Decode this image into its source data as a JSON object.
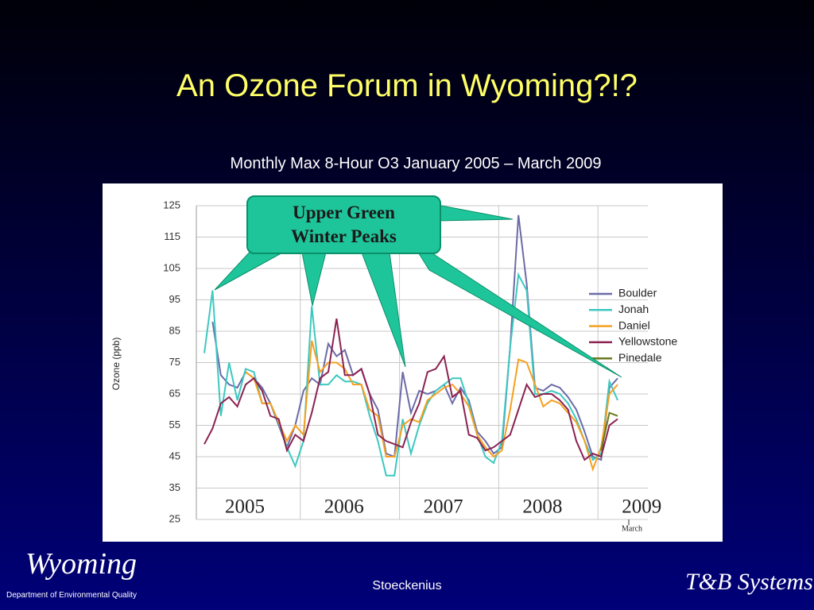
{
  "chart_data": {
    "type": "line",
    "title": "An Ozone Forum in Wyoming?!?",
    "subtitle": "Monthly Max 8-Hour O3 January 2005 – March 2009",
    "y_label": "Ozone (ppb)",
    "annotation": "Upper Green Winter Peaks",
    "categories": [
      null,
      null,
      null,
      null,
      null,
      null,
      null,
      null,
      null,
      null,
      null,
      null,
      null,
      null,
      null,
      null,
      null,
      null,
      null,
      null,
      null,
      null,
      null,
      null,
      null,
      null,
      null,
      null,
      null,
      null,
      null,
      null,
      null,
      null,
      null,
      null,
      null,
      null,
      null,
      null,
      null,
      null,
      null,
      null,
      null,
      null,
      null,
      null,
      null,
      null,
      null
    ],
    "x_groups": [
      "2005",
      "2006",
      "2007",
      "2008",
      "2009"
    ],
    "x_note": "March",
    "ylim": [
      25,
      125
    ],
    "yticks": [
      25,
      35,
      45,
      55,
      65,
      75,
      85,
      95,
      105,
      115,
      125
    ],
    "grid": true,
    "legend": "right",
    "series": [
      {
        "name": "Boulder",
        "color": "#6b6ba8",
        "values": [
          null,
          88,
          71,
          68,
          67,
          72,
          70,
          67,
          62,
          55,
          48,
          55,
          66,
          70,
          68,
          81,
          77,
          79,
          71,
          73,
          65,
          60,
          46,
          45,
          72,
          59,
          66,
          65,
          66,
          68,
          62,
          67,
          63,
          53,
          50,
          46,
          48,
          80,
          122,
          100,
          67,
          66,
          68,
          67,
          64,
          60,
          53,
          45,
          44,
          67,
          70
        ]
      },
      {
        "name": "Jonah",
        "color": "#3cc8c0",
        "values": [
          78,
          98,
          58,
          75,
          63,
          73,
          72,
          62,
          62,
          56,
          48,
          42,
          50,
          93,
          68,
          68,
          71,
          69,
          69,
          68,
          58,
          50,
          39,
          39,
          57,
          46,
          55,
          62,
          66,
          68,
          70,
          70,
          62,
          52,
          45,
          43,
          50,
          80,
          103,
          98,
          65,
          65,
          66,
          65,
          62,
          57,
          50,
          44,
          46,
          69,
          63
        ]
      },
      {
        "name": "Daniel",
        "color": "#f5a020",
        "values": [
          null,
          null,
          null,
          null,
          null,
          72,
          70,
          62,
          62,
          56,
          50,
          55,
          52,
          82,
          72,
          75,
          75,
          73,
          68,
          68,
          60,
          58,
          45,
          45,
          55,
          57,
          56,
          63,
          65,
          67,
          68,
          65,
          61,
          52,
          48,
          45,
          47,
          60,
          76,
          75,
          68,
          61,
          63,
          62,
          59,
          56,
          50,
          41,
          48,
          65,
          68
        ]
      },
      {
        "name": "Yellowstone",
        "color": "#8b2252",
        "values": [
          49,
          54,
          62,
          64,
          61,
          68,
          70,
          66,
          58,
          57,
          47,
          52,
          50,
          59,
          70,
          72,
          89,
          71,
          71,
          73,
          65,
          52,
          50,
          49,
          48,
          56,
          62,
          72,
          73,
          77,
          64,
          66,
          52,
          51,
          47,
          48,
          50,
          52,
          60,
          68,
          64,
          65,
          65,
          63,
          60,
          50,
          44,
          46,
          45,
          55,
          57
        ]
      },
      {
        "name": "Pinedale",
        "color": "#6b7a1e",
        "values": [
          null,
          null,
          null,
          null,
          null,
          null,
          null,
          null,
          null,
          null,
          null,
          null,
          null,
          null,
          null,
          null,
          null,
          null,
          null,
          null,
          null,
          null,
          null,
          null,
          null,
          null,
          null,
          null,
          null,
          null,
          null,
          null,
          null,
          null,
          null,
          null,
          null,
          null,
          null,
          null,
          null,
          null,
          null,
          null,
          null,
          null,
          null,
          null,
          47,
          59,
          58
        ]
      }
    ]
  },
  "footer": {
    "presenter": "Stoeckenius",
    "left_logo": "Wyoming",
    "left_logo_sub": "Department of Environmental Quality",
    "right_logo": "T&B Systems"
  }
}
